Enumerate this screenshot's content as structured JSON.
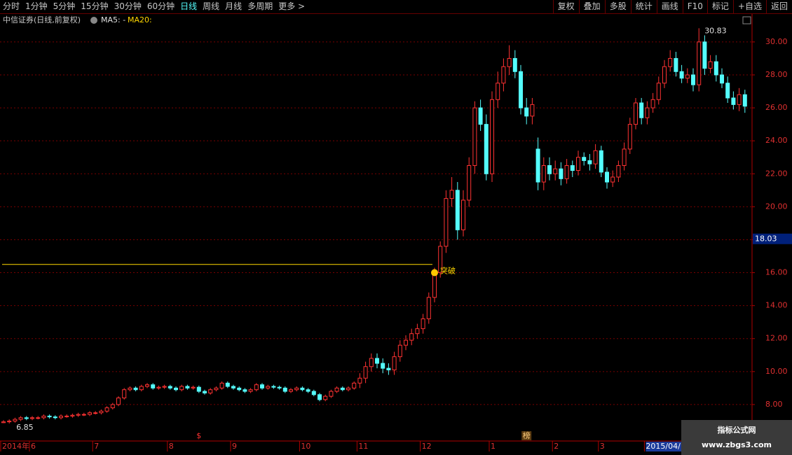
{
  "toolbar": {
    "left": [
      "分时",
      "1分钟",
      "5分钟",
      "15分钟",
      "30分钟",
      "60分钟",
      "日线",
      "周线",
      "月线",
      "多周期",
      "更多 >"
    ],
    "right": [
      "复权",
      "叠加",
      "多股",
      "统计",
      "画线",
      "F10",
      "标记",
      "+自选",
      "返回"
    ]
  },
  "header": {
    "title": "中信证券(日线,前复权)",
    "ma5": "MA5: -",
    "ma20": "MA20:"
  },
  "watermark": {
    "name": "指标公式网",
    "url": "www.zbgs3.com"
  },
  "markers": [
    {
      "label": "$",
      "index": 34
    },
    {
      "label": "榜",
      "index": 91
    }
  ],
  "chart_data": {
    "type": "candlestick",
    "open": [
      6.9,
      6.95,
      7.0,
      7.1,
      7.2,
      7.15,
      7.2,
      7.2,
      7.3,
      7.25,
      7.2,
      7.3,
      7.3,
      7.35,
      7.4,
      7.4,
      7.5,
      7.5,
      7.6,
      7.8,
      8.0,
      8.4,
      8.9,
      9.0,
      8.9,
      9.1,
      9.2,
      9.0,
      9.05,
      9.1,
      9.0,
      8.9,
      9.1,
      9.0,
      9.05,
      8.8,
      8.7,
      8.9,
      9.0,
      9.3,
      9.1,
      9.0,
      8.9,
      8.8,
      8.9,
      9.2,
      9.0,
      9.1,
      9.05,
      9.0,
      8.8,
      8.9,
      9.0,
      8.9,
      8.8,
      8.6,
      8.3,
      8.5,
      8.8,
      9.0,
      8.9,
      9.0,
      9.3,
      9.6,
      10.3,
      10.8,
      10.5,
      10.2,
      10.1,
      10.9,
      11.6,
      11.9,
      12.3,
      12.6,
      13.2,
      14.5,
      16.0,
      17.6,
      20.5,
      21.0,
      18.6,
      20.4,
      22.5,
      26.0,
      25.0,
      22.0,
      26.5,
      27.5,
      28.5,
      29.0,
      28.2,
      26.0,
      25.5,
      23.5,
      21.5,
      22.5,
      22.0,
      22.3,
      21.7,
      22.5,
      22.2,
      23.0,
      22.8,
      22.6,
      23.4,
      22.1,
      21.5,
      21.8,
      22.5,
      23.5,
      25.0,
      26.3,
      25.4,
      26.0,
      26.5,
      27.5,
      28.5,
      29.0,
      28.2,
      27.8,
      28.0,
      27.4,
      30.0,
      28.4,
      28.8,
      28.0,
      27.5,
      26.6,
      26.2,
      26.8
    ],
    "high": [
      7.05,
      7.1,
      7.2,
      7.3,
      7.3,
      7.3,
      7.3,
      7.4,
      7.4,
      7.35,
      7.4,
      7.4,
      7.45,
      7.5,
      7.5,
      7.6,
      7.6,
      7.7,
      7.9,
      8.1,
      8.5,
      9.0,
      9.1,
      9.1,
      9.2,
      9.3,
      9.3,
      9.15,
      9.2,
      9.2,
      9.1,
      9.2,
      9.2,
      9.15,
      9.15,
      8.9,
      9.0,
      9.1,
      9.4,
      9.4,
      9.2,
      9.1,
      9.0,
      9.0,
      9.3,
      9.3,
      9.2,
      9.2,
      9.15,
      9.1,
      9.0,
      9.1,
      9.1,
      9.0,
      8.9,
      8.7,
      8.6,
      8.9,
      9.1,
      9.1,
      9.1,
      9.4,
      9.9,
      10.6,
      11.1,
      11.1,
      10.8,
      10.5,
      11.2,
      11.9,
      12.2,
      12.6,
      12.9,
      13.5,
      14.8,
      16.3,
      17.9,
      21.0,
      21.8,
      21.5,
      21.0,
      23.0,
      26.4,
      26.5,
      25.6,
      27.0,
      28.2,
      29.0,
      29.8,
      29.5,
      28.6,
      26.6,
      26.6,
      24.2,
      23.0,
      23.0,
      22.8,
      22.7,
      22.9,
      22.8,
      23.4,
      23.3,
      23.2,
      23.8,
      23.7,
      22.4,
      22.2,
      22.8,
      23.9,
      25.4,
      26.6,
      26.6,
      26.4,
      26.9,
      27.9,
      28.9,
      29.5,
      29.4,
      28.6,
      28.4,
      28.4,
      30.83,
      30.4,
      29.2,
      29.2,
      28.4,
      27.9,
      27.0,
      27.2,
      27.1
    ],
    "low": [
      6.87,
      6.85,
      6.9,
      7.0,
      7.05,
      7.05,
      7.1,
      7.1,
      7.15,
      7.1,
      7.1,
      7.2,
      7.2,
      7.25,
      7.3,
      7.3,
      7.4,
      7.4,
      7.5,
      7.7,
      7.9,
      8.3,
      8.8,
      8.8,
      8.8,
      9.0,
      8.9,
      8.9,
      8.95,
      8.9,
      8.8,
      8.8,
      8.9,
      8.9,
      8.7,
      8.6,
      8.6,
      8.8,
      8.9,
      9.0,
      8.9,
      8.8,
      8.7,
      8.7,
      8.8,
      8.9,
      8.9,
      8.95,
      8.9,
      8.7,
      8.7,
      8.8,
      8.8,
      8.7,
      8.5,
      8.2,
      8.2,
      8.4,
      8.7,
      8.8,
      8.8,
      8.9,
      9.0,
      9.3,
      10.0,
      10.2,
      9.9,
      9.8,
      9.8,
      10.6,
      11.3,
      11.6,
      12.0,
      12.3,
      12.9,
      14.2,
      15.7,
      17.2,
      20.0,
      18.0,
      18.2,
      20.0,
      22.0,
      24.6,
      21.6,
      21.5,
      26.0,
      27.0,
      28.0,
      27.8,
      25.6,
      25.0,
      25.0,
      21.0,
      21.0,
      21.6,
      21.6,
      21.3,
      21.4,
      21.8,
      21.9,
      22.5,
      22.2,
      22.3,
      21.8,
      21.1,
      21.2,
      21.5,
      22.2,
      23.2,
      24.7,
      25.0,
      25.0,
      25.7,
      26.2,
      27.2,
      28.2,
      27.9,
      27.5,
      27.5,
      27.0,
      27.0,
      28.0,
      28.1,
      27.6,
      27.2,
      26.3,
      25.9,
      25.8,
      25.7
    ],
    "close": [
      6.95,
      7.0,
      7.1,
      7.2,
      7.15,
      7.2,
      7.2,
      7.3,
      7.25,
      7.2,
      7.3,
      7.3,
      7.35,
      7.4,
      7.4,
      7.5,
      7.5,
      7.6,
      7.8,
      8.0,
      8.4,
      8.9,
      9.0,
      8.9,
      9.1,
      9.2,
      9.0,
      9.05,
      9.1,
      9.0,
      8.9,
      9.1,
      9.0,
      9.05,
      8.8,
      8.7,
      8.9,
      9.0,
      9.3,
      9.1,
      9.0,
      8.9,
      8.8,
      8.9,
      9.2,
      9.0,
      9.1,
      9.05,
      9.0,
      8.8,
      8.9,
      9.0,
      8.9,
      8.8,
      8.6,
      8.3,
      8.5,
      8.8,
      9.0,
      8.9,
      9.0,
      9.3,
      9.6,
      10.3,
      10.8,
      10.5,
      10.2,
      10.1,
      10.9,
      11.6,
      11.9,
      12.3,
      12.6,
      13.2,
      14.5,
      16.0,
      17.6,
      20.5,
      21.0,
      18.6,
      20.4,
      22.5,
      26.0,
      25.0,
      22.0,
      26.5,
      27.5,
      28.5,
      29.0,
      28.2,
      26.0,
      25.5,
      26.2,
      21.5,
      22.5,
      22.0,
      22.3,
      21.7,
      22.5,
      22.2,
      23.0,
      22.8,
      22.6,
      23.4,
      22.1,
      21.5,
      21.8,
      22.5,
      23.5,
      25.0,
      26.3,
      25.4,
      26.0,
      26.5,
      27.5,
      28.5,
      29.0,
      28.2,
      27.8,
      28.0,
      27.4,
      30.0,
      28.4,
      28.8,
      28.0,
      27.5,
      26.6,
      26.2,
      26.8,
      26.1
    ],
    "up_color": "#ff3232",
    "down_color": "#54fcfc",
    "ylim": [
      6.0,
      30.93
    ],
    "yticks": [
      {
        "value": 8,
        "label": "8.00"
      },
      {
        "value": 10,
        "label": "10.00"
      },
      {
        "value": 12,
        "label": "12.00"
      },
      {
        "value": 14,
        "label": "14.00"
      },
      {
        "value": 16,
        "label": "16.00"
      },
      {
        "value": 18,
        "label": "18.00"
      },
      {
        "value": 20,
        "label": "20.00"
      },
      {
        "value": 22,
        "label": "22.00"
      },
      {
        "value": 24,
        "label": "24.00"
      },
      {
        "value": 26,
        "label": "26.00"
      },
      {
        "value": 28,
        "label": "28.00"
      },
      {
        "value": 30,
        "label": "30.00"
      }
    ],
    "grid": true,
    "x_labels": [
      {
        "label": "2014年",
        "index": 0
      },
      {
        "label": "6",
        "index": 5
      },
      {
        "label": "7",
        "index": 16
      },
      {
        "label": "8",
        "index": 29
      },
      {
        "label": "9",
        "index": 40
      },
      {
        "label": "10",
        "index": 52
      },
      {
        "label": "11",
        "index": 62
      },
      {
        "label": "12",
        "index": 73
      },
      {
        "label": "1",
        "index": 85
      },
      {
        "label": "2",
        "index": 96
      },
      {
        "label": "3",
        "index": 104
      },
      {
        "label": "2015/04/",
        "index": 112
      }
    ],
    "cursor_price": 18.03,
    "breakout": {
      "label": "突破",
      "index": 75,
      "value": 16.0,
      "level": 16.5
    }
  }
}
